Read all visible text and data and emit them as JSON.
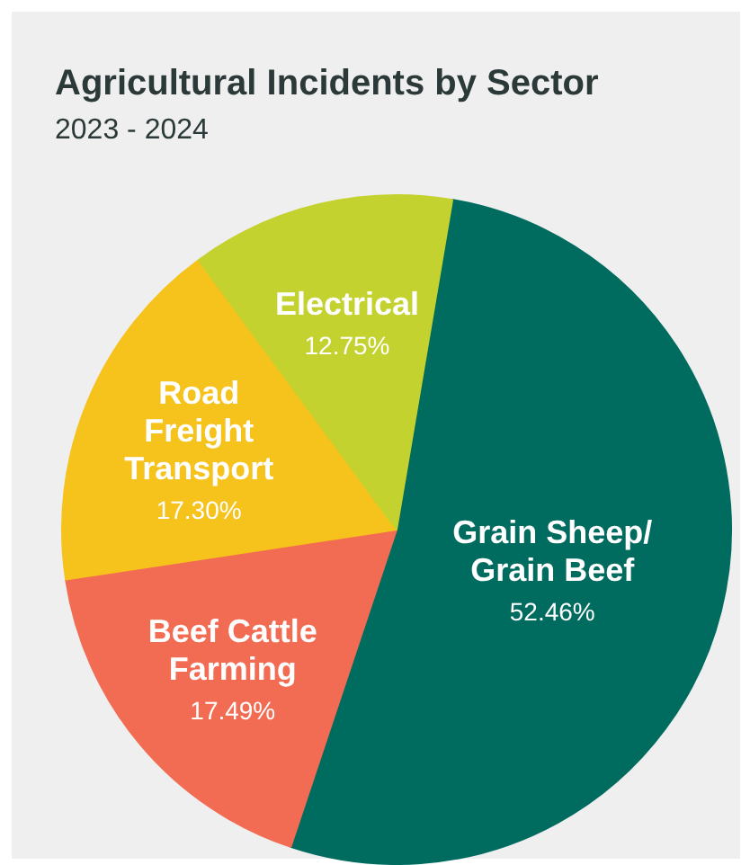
{
  "chart_data": {
    "type": "pie",
    "title": "Agricultural Incidents by Sector",
    "subtitle": "2023 - 2024",
    "categories": [
      "Grain Sheep/\nGrain Beef",
      "Beef Cattle\nFarming",
      "Road\nFreight\nTransport",
      "Electrical"
    ],
    "values": [
      52.46,
      17.49,
      17.3,
      12.75
    ],
    "value_labels": [
      "52.46%",
      "17.49%",
      "17.30%",
      "12.75%"
    ],
    "colors": [
      "#006b5f",
      "#f26c53",
      "#f6c21c",
      "#c4d22f"
    ]
  }
}
